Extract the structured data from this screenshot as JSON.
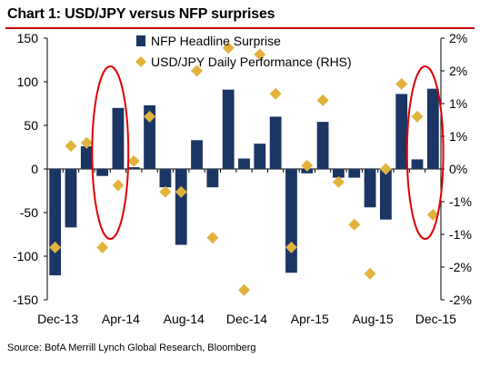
{
  "title": "Chart 1: USD/JPY versus NFP surprises",
  "source": "Source: BofA Merrill Lynch Global Research, Bloomberg",
  "colors": {
    "bar": "#1b3564",
    "diamond": "#e2b23e",
    "ellipse": "#e00000",
    "title_rule": "#c00000"
  },
  "chart_data": {
    "type": "bar",
    "x_tick_labels": [
      "Dec-13",
      "Apr-14",
      "Aug-14",
      "Dec-14",
      "Apr-15",
      "Aug-15",
      "Dec-15"
    ],
    "y_left": {
      "ylim": [
        -150,
        150
      ],
      "ticks": [
        150,
        100,
        50,
        0,
        -50,
        -100,
        -150
      ],
      "tick_labels": [
        "150",
        "100",
        "50",
        "0",
        "-50",
        "-100",
        "-150"
      ]
    },
    "y_right": {
      "ylim": [
        -2,
        2
      ],
      "ticks": [
        2,
        1.5,
        1,
        0.5,
        0,
        -0.5,
        -1,
        -1.5,
        -2
      ],
      "tick_labels": [
        "2%",
        "2%",
        "1%",
        "1%",
        "0%",
        "-1%",
        "-1%",
        "-2%",
        "-2%"
      ]
    },
    "legend": {
      "position": "top-right",
      "entries": [
        "NFP Headline Surprise",
        "USD/JPY Daily Performance (RHS)"
      ]
    },
    "series": [
      {
        "name": "NFP Headline Surprise",
        "type": "bar",
        "axis": "left",
        "x": [
          "Dec-13",
          "Jan-14",
          "Feb-14",
          "Mar-14",
          "Apr-14",
          "May-14",
          "Jun-14",
          "Jul-14",
          "Aug-14",
          "Sep-14",
          "Oct-14",
          "Nov-14",
          "Dec-14",
          "Jan-15",
          "Feb-15",
          "Mar-15",
          "Apr-15",
          "May-15",
          "Jun-15",
          "Jul-15",
          "Aug-15",
          "Sep-15",
          "Oct-15",
          "Nov-15",
          "Dec-15"
        ],
        "values": [
          -122,
          -67,
          26,
          -8,
          70,
          2,
          73,
          -21,
          -87,
          33,
          -21,
          91,
          12,
          29,
          60,
          -119,
          -5,
          54,
          -10,
          -10,
          -44,
          -58,
          86,
          11,
          92
        ]
      },
      {
        "name": "USD/JPY Daily Performance (RHS)",
        "type": "scatter",
        "axis": "right",
        "x": [
          "Dec-13",
          "Jan-14",
          "Feb-14",
          "Mar-14",
          "Apr-14",
          "May-14",
          "Jun-14",
          "Jul-14",
          "Aug-14",
          "Sep-14",
          "Oct-14",
          "Nov-14",
          "Dec-14",
          "Jan-15",
          "Feb-15",
          "Mar-15",
          "Apr-15",
          "May-15",
          "Jun-15",
          "Jul-15",
          "Aug-15",
          "Sep-15",
          "Oct-15",
          "Nov-15",
          "Dec-15"
        ],
        "values": [
          -1.2,
          0.35,
          0.4,
          -1.2,
          -0.25,
          0.12,
          0.8,
          -0.35,
          -0.35,
          1.5,
          -1.05,
          1.85,
          -1.85,
          1.75,
          1.15,
          -1.2,
          0.05,
          1.05,
          -0.2,
          -0.85,
          -1.6,
          0.0,
          1.3,
          0.8,
          -0.7
        ]
      }
    ],
    "highlights": [
      {
        "shape": "ellipse",
        "from": "Mar-14",
        "to": "Apr-14"
      },
      {
        "shape": "ellipse",
        "from": "Nov-15",
        "to": "Dec-15"
      }
    ]
  }
}
